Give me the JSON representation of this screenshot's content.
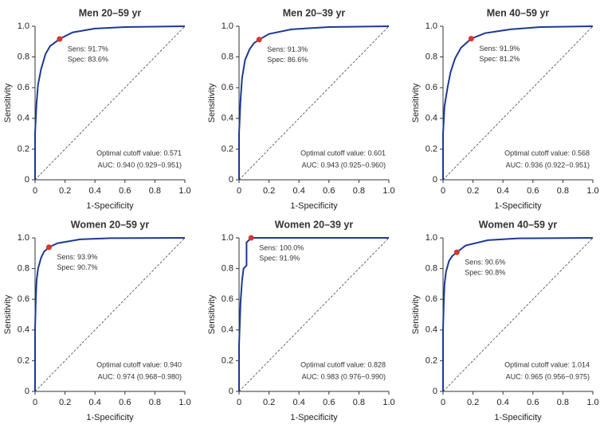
{
  "chart_data": [
    {
      "type": "line",
      "title": "Men 20–59 yr",
      "x_label": "1-Specificity",
      "y_label": "Sensitivity",
      "xlim": [
        0,
        1
      ],
      "ylim": [
        0,
        1
      ],
      "xticks": [
        0,
        0.2,
        0.4,
        0.6,
        0.8,
        {
          "value": 1,
          "label": "1.0"
        }
      ],
      "yticks": [
        0,
        0.2,
        0.4,
        0.6,
        0.8,
        {
          "value": 1,
          "label": "1.0"
        }
      ],
      "color": "#1b3a93",
      "x": [
        0,
        0,
        0.01,
        0.02,
        0.04,
        0.07,
        0.1,
        0.164,
        0.25,
        0.4,
        0.6,
        1
      ],
      "values": [
        0,
        0.3,
        0.5,
        0.62,
        0.72,
        0.82,
        0.87,
        0.917,
        0.96,
        0.985,
        0.995,
        1
      ],
      "marker": {
        "x": 0.164,
        "y": 0.917,
        "color": "#d9352b"
      },
      "annotations": [
        "Sens: 91.7%",
        "Spec: 83.6%",
        "Optimal cutoff value: 0.571",
        "AUC: 0.940 (0.929−0.951)"
      ]
    },
    {
      "type": "line",
      "title": "Men 20–39 yr",
      "x_label": "1-Specificity",
      "y_label": "Sensitivity",
      "xlim": [
        0,
        1
      ],
      "ylim": [
        0,
        1
      ],
      "xticks": [
        0,
        0.2,
        0.4,
        0.6,
        0.8,
        {
          "value": 1,
          "label": "1.0"
        }
      ],
      "yticks": [
        0,
        0.2,
        0.4,
        0.6,
        0.8,
        {
          "value": 1,
          "label": "1.0"
        }
      ],
      "color": "#1b3a93",
      "x": [
        0,
        0,
        0.01,
        0.02,
        0.04,
        0.07,
        0.1,
        0.134,
        0.2,
        0.35,
        0.6,
        1
      ],
      "values": [
        0,
        0.3,
        0.52,
        0.66,
        0.78,
        0.85,
        0.89,
        0.913,
        0.95,
        0.98,
        0.995,
        1
      ],
      "marker": {
        "x": 0.134,
        "y": 0.913,
        "color": "#d9352b"
      },
      "annotations": [
        "Sens: 91.3%",
        "Spec: 86.6%",
        "Optimal cutoff value: 0.601",
        "AUC: 0.943 (0.925−0.960)"
      ]
    },
    {
      "type": "line",
      "title": "Men 40–59 yr",
      "x_label": "1-Specificity",
      "y_label": "Sensitivity",
      "xlim": [
        0,
        1
      ],
      "ylim": [
        0,
        1
      ],
      "xticks": [
        0,
        0.2,
        0.4,
        0.6,
        0.8,
        {
          "value": 1,
          "label": "1.0"
        }
      ],
      "yticks": [
        0,
        0.2,
        0.4,
        0.6,
        0.8,
        {
          "value": 1,
          "label": "1.0"
        }
      ],
      "color": "#1b3a93",
      "x": [
        0,
        0,
        0.01,
        0.03,
        0.05,
        0.08,
        0.12,
        0.188,
        0.28,
        0.45,
        0.65,
        1
      ],
      "values": [
        0,
        0.3,
        0.48,
        0.6,
        0.7,
        0.79,
        0.86,
        0.919,
        0.955,
        0.98,
        0.995,
        1
      ],
      "marker": {
        "x": 0.188,
        "y": 0.919,
        "color": "#d9352b"
      },
      "annotations": [
        "Sens: 91.9%",
        "Spec: 81.2%",
        "Optimal cutoff value: 0.568",
        "AUC: 0.936 (0.922−0.951)"
      ]
    },
    {
      "type": "line",
      "title": "Women 20–59 yr",
      "x_label": "1-Specificity",
      "y_label": "Sensitivity",
      "xlim": [
        0,
        1
      ],
      "ylim": [
        0,
        1
      ],
      "xticks": [
        0,
        0.2,
        0.4,
        0.6,
        0.8,
        {
          "value": 1,
          "label": "1.0"
        }
      ],
      "yticks": [
        0,
        0.2,
        0.4,
        0.6,
        0.8,
        {
          "value": 1,
          "label": "1.0"
        }
      ],
      "color": "#1b3a93",
      "x": [
        0,
        0,
        0.005,
        0.01,
        0.02,
        0.04,
        0.06,
        0.093,
        0.15,
        0.3,
        0.5,
        1
      ],
      "values": [
        0,
        0.4,
        0.6,
        0.72,
        0.8,
        0.87,
        0.91,
        0.939,
        0.965,
        0.99,
        0.998,
        1
      ],
      "marker": {
        "x": 0.093,
        "y": 0.939,
        "color": "#d9352b"
      },
      "annotations": [
        "Sens: 93.9%",
        "Spec: 90.7%",
        "Optimal cutoff value: 0.940",
        "AUC: 0.974 (0.968−0.980)"
      ]
    },
    {
      "type": "line",
      "title": "Women 20–39 yr",
      "x_label": "1-Specificity",
      "y_label": "Sensitivity",
      "xlim": [
        0,
        1
      ],
      "ylim": [
        0,
        1
      ],
      "xticks": [
        0,
        0.2,
        0.4,
        0.6,
        0.8,
        {
          "value": 1,
          "label": "1.0"
        }
      ],
      "yticks": [
        0,
        0.2,
        0.4,
        0.6,
        0.8,
        {
          "value": 1,
          "label": "1.0"
        }
      ],
      "color": "#1b3a93",
      "x": [
        0,
        0,
        0.01,
        0.02,
        0.03,
        0.05,
        0.05,
        0.081,
        0.2,
        0.5,
        1
      ],
      "values": [
        0,
        0.3,
        0.58,
        0.72,
        0.8,
        0.82,
        0.97,
        1,
        1,
        1,
        1
      ],
      "marker": {
        "x": 0.081,
        "y": 1,
        "color": "#d9352b"
      },
      "annotations": [
        "Sens: 100.0%",
        "Spec: 91.9%",
        "Optimal cutoff value: 0.828",
        "AUC: 0.983 (0.976−0.990)"
      ]
    },
    {
      "type": "line",
      "title": "Women 40–59 yr",
      "x_label": "1-Specificity",
      "y_label": "Sensitivity",
      "xlim": [
        0,
        1
      ],
      "ylim": [
        0,
        1
      ],
      "xticks": [
        0,
        0.2,
        0.4,
        0.6,
        0.8,
        {
          "value": 1,
          "label": "1.0"
        }
      ],
      "yticks": [
        0,
        0.2,
        0.4,
        0.6,
        0.8,
        {
          "value": 1,
          "label": "1.0"
        }
      ],
      "color": "#1b3a93",
      "x": [
        0,
        0,
        0.005,
        0.01,
        0.02,
        0.04,
        0.06,
        0.092,
        0.15,
        0.3,
        0.5,
        1
      ],
      "values": [
        0,
        0.4,
        0.58,
        0.7,
        0.78,
        0.85,
        0.88,
        0.906,
        0.95,
        0.985,
        0.997,
        1
      ],
      "marker": {
        "x": 0.092,
        "y": 0.906,
        "color": "#d9352b"
      },
      "annotations": [
        "Sens: 90.6%",
        "Spec: 90.8%",
        "Optimal cutoff value: 1.014",
        "AUC: 0.965 (0.956−0.975)"
      ]
    }
  ]
}
